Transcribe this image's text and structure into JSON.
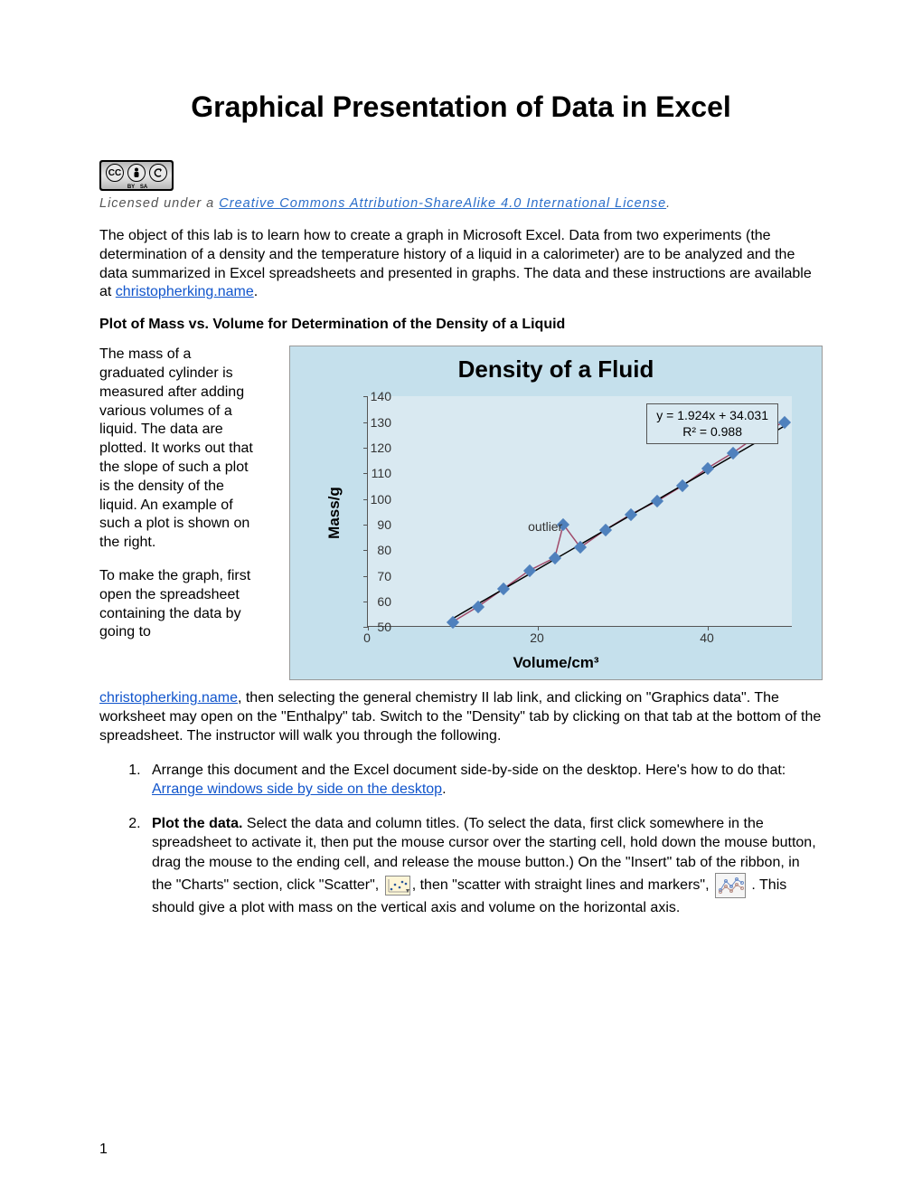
{
  "title": "Graphical Presentation of Data in Excel",
  "cc": {
    "by": "BY",
    "sa": "SA"
  },
  "license": {
    "prefix": "Licensed under a ",
    "link_text": "Creative Commons Attribution-ShareAlike 4.0 International License",
    "suffix": "."
  },
  "intro": {
    "text_before_link": "The object of this lab is to learn how to create a graph in Microsoft Excel.  Data from two experiments (the determination of a density and the temperature history of a liquid in a calorimeter) are to be analyzed and the data summarized in Excel spreadsheets and presented in graphs.  The data and these instructions are available at ",
    "link": "christopherking.name",
    "text_after_link": "."
  },
  "section1_heading": "Plot of Mass vs. Volume for Determination of the Density of a Liquid",
  "left_para1": "The mass of a graduated cylinder is measured after adding various volumes of a liquid. The data are plotted. It works out that the slope of such a plot is the density of the liquid.  An example of such a plot is shown on the right.",
  "left_para2": "To make the graph, first open the spreadsheet containing the data by going to",
  "after_chart": {
    "link": "christopherking.name",
    "text": ", then selecting the general chemistry II lab link, and clicking on \"Graphics data\".  The worksheet may open on the \"Enthalpy\" tab.  Switch to the \"Density\" tab by clicking on that tab at the bottom of the spreadsheet.  The instructor will walk you through the following."
  },
  "list": {
    "item1": {
      "text_before": "Arrange this document and the Excel document side-by-side on the desktop. Here's how to do that:  ",
      "link": "Arrange windows side by side on the desktop",
      "text_after": "."
    },
    "item2": {
      "bold": "Plot the data.",
      "text1": "  Select the data and column titles.  (To select the data, first click somewhere in the spreadsheet to activate it, then put the mouse cursor over the starting cell, hold down the mouse button, drag the mouse to the ending cell, and release the mouse button.)  On the \"Insert\" tab of the ribbon, in the \"Charts\" section, click \"Scatter\", ",
      "text2": ", then \"scatter with straight lines and markers\", ",
      "text3": " .  This should give a plot with mass on the vertical axis and volume on the horizontal axis."
    }
  },
  "page_number": "1",
  "chart": {
    "type": "scatter-line",
    "title": "Density of a Fluid",
    "xlabel": "Volume/cm³",
    "ylabel": "Mass/g",
    "xlim": [
      0,
      50
    ],
    "ylim": [
      50,
      140
    ],
    "ytick_step": 10,
    "yticks": [
      50,
      60,
      70,
      80,
      90,
      100,
      110,
      120,
      130,
      140
    ],
    "xticks": [
      0,
      20,
      40
    ],
    "background_color": "#c5e0ec",
    "plot_bg_color": "#d9e9f1",
    "marker_color": "#4f81bd",
    "line_color": "#a04a6a",
    "trendline_color": "#000000",
    "equation_line1": "y = 1.924x + 34.031",
    "equation_line2": "R² = 0.988",
    "outlier_text": "outlier",
    "data": {
      "x": [
        10,
        13,
        16,
        19,
        22,
        23,
        25,
        28,
        31,
        34,
        37,
        40,
        43,
        46,
        49
      ],
      "y": [
        52,
        58,
        65,
        72,
        77,
        90,
        81,
        88,
        94,
        99,
        105,
        112,
        118,
        125,
        130
      ]
    },
    "trendline": {
      "slope": 1.924,
      "intercept": 34.031
    }
  }
}
